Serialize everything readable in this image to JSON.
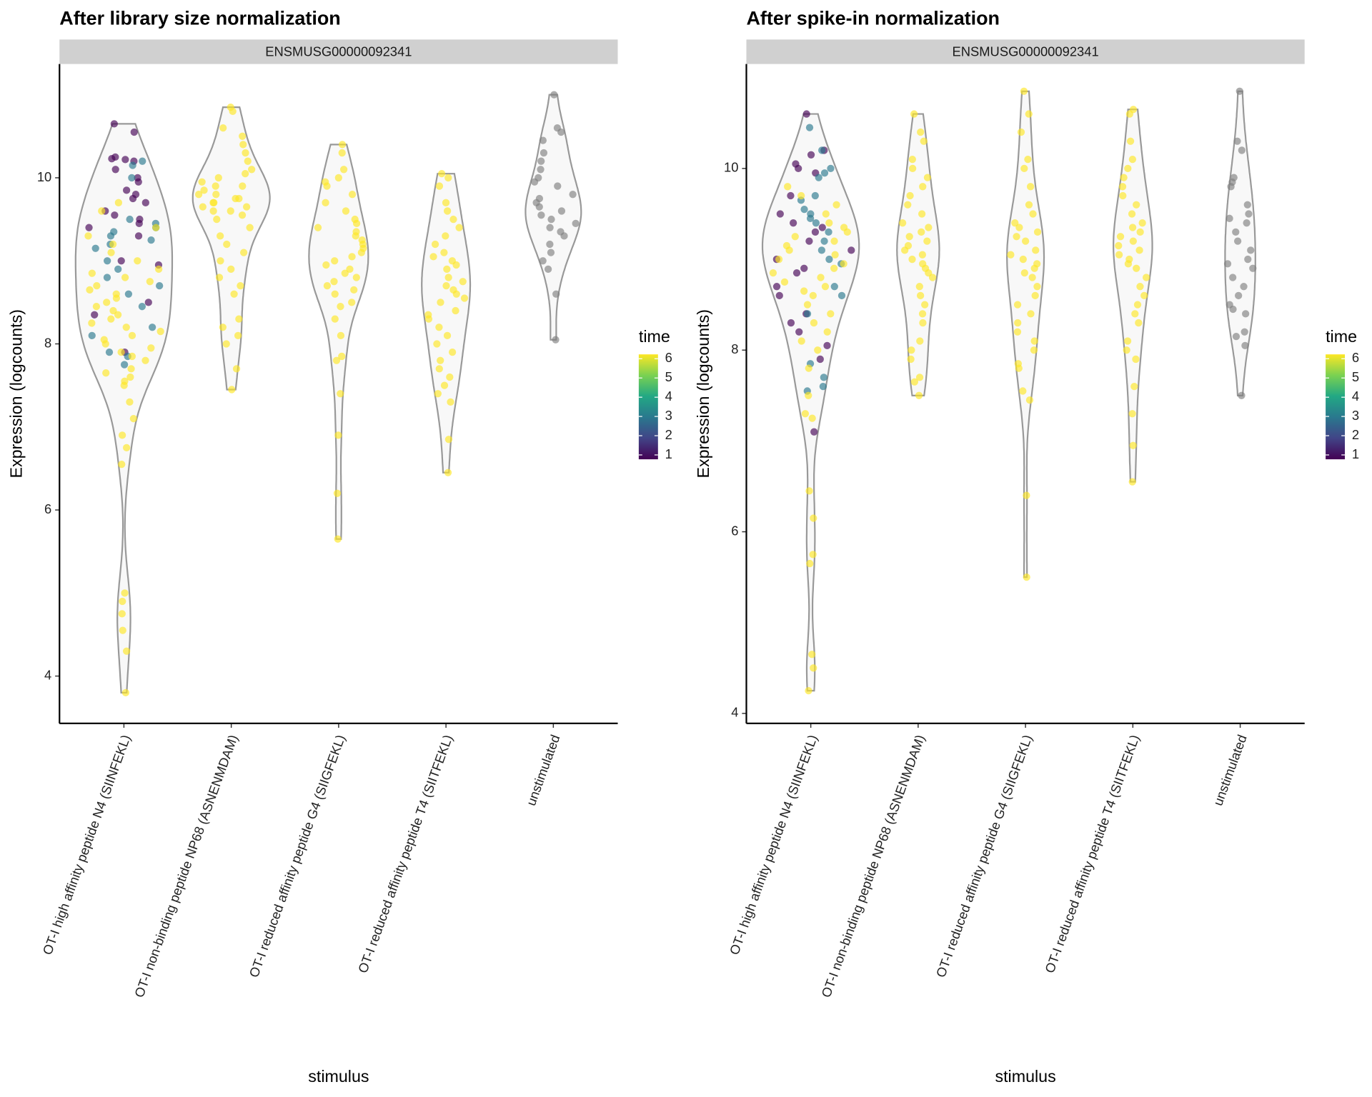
{
  "chart_data": [
    {
      "type": "violin",
      "title": "After library size normalization",
      "strip": "ENSMUSG00000092341",
      "ylabel": "Expression (logcounts)",
      "xlabel": "stimulus",
      "ylim": [
        3.43,
        11.37
      ],
      "yticks": [
        4,
        6,
        8,
        10
      ],
      "color_scale": {
        "title": "time",
        "lim": [
          1,
          6
        ],
        "ticks": [
          1,
          2,
          3,
          4,
          5,
          6
        ],
        "colors": [
          "#440154",
          "#414487",
          "#2a788e",
          "#22a884",
          "#7ad151",
          "#fde725"
        ],
        "na_color": "#7f7f7f"
      },
      "categories": [
        {
          "name": "OT-I high affinity peptide N4 (SIINFEKL)",
          "points": [
            {
              "time": 1,
              "values": [
                10.65,
                10.55,
                10.25,
                10.23,
                10.2,
                10.22,
                10.1,
                10.0,
                9.95,
                9.85,
                9.8,
                9.75,
                9.7,
                9.6,
                9.55,
                9.5,
                9.45,
                9.4,
                9.3,
                9.0,
                8.95,
                8.5,
                8.35,
                7.9
              ]
            },
            {
              "time": 3,
              "values": [
                10.2,
                10.15,
                10.0,
                9.5,
                9.45,
                9.4,
                9.35,
                9.3,
                9.25,
                9.2,
                9.15,
                9.0,
                8.9,
                8.8,
                8.7,
                8.6,
                8.45,
                8.2,
                8.1,
                7.9,
                7.85,
                7.75
              ]
            },
            {
              "time": 6,
              "values": [
                9.7,
                9.6,
                9.4,
                9.3,
                9.2,
                9.1,
                9.0,
                8.9,
                8.8,
                8.7,
                8.6,
                8.5,
                8.4,
                8.35,
                8.3,
                8.2,
                8.1,
                8.0,
                7.95,
                7.9,
                7.8,
                7.7,
                7.6,
                7.55,
                7.5,
                7.3,
                7.1,
                6.9,
                6.75,
                6.55,
                5.0,
                4.9,
                4.75,
                4.55,
                4.3,
                3.8,
                8.85,
                8.75,
                8.65,
                8.55,
                8.45,
                8.25,
                8.15,
                8.05,
                7.85,
                7.65
              ]
            }
          ]
        },
        {
          "name": "OT-I non-binding peptide NP68 (ASNENMDAM)",
          "points": [
            {
              "time": 6,
              "values": [
                10.85,
                10.8,
                10.6,
                10.5,
                10.4,
                10.3,
                10.2,
                10.1,
                10.05,
                10.0,
                9.95,
                9.9,
                9.85,
                9.8,
                9.75,
                9.7,
                9.65,
                9.6,
                9.55,
                9.5,
                9.4,
                9.3,
                9.2,
                9.1,
                9.0,
                8.9,
                8.8,
                8.7,
                8.6,
                8.3,
                8.2,
                8.1,
                8.0,
                7.7,
                7.45,
                9.9,
                9.8,
                9.7,
                9.6,
                9.75,
                9.65
              ]
            }
          ]
        },
        {
          "name": "OT-I reduced affinity peptide G4 (SIIGFEKL)",
          "points": [
            {
              "time": 6,
              "values": [
                10.4,
                10.3,
                10.1,
                10.0,
                9.95,
                9.9,
                9.8,
                9.7,
                9.6,
                9.5,
                9.4,
                9.35,
                9.3,
                9.2,
                9.1,
                9.05,
                9.0,
                8.95,
                8.9,
                8.8,
                8.75,
                8.7,
                8.6,
                8.5,
                8.45,
                8.3,
                8.1,
                7.85,
                7.8,
                7.4,
                6.9,
                6.2,
                5.65,
                9.25,
                9.15,
                8.85,
                8.65,
                9.45
              ]
            }
          ]
        },
        {
          "name": "OT-I reduced affinity peptide T4 (SIITFEKL)",
          "points": [
            {
              "time": 6,
              "values": [
                10.05,
                10.0,
                9.9,
                9.7,
                9.6,
                9.5,
                9.4,
                9.3,
                9.2,
                9.1,
                9.05,
                9.0,
                8.9,
                8.8,
                8.7,
                8.6,
                8.5,
                8.4,
                8.3,
                8.2,
                8.1,
                8.0,
                7.9,
                7.8,
                7.7,
                7.6,
                7.5,
                7.4,
                7.3,
                6.85,
                6.45,
                8.75,
                8.65,
                8.55,
                8.35,
                8.95
              ]
            }
          ]
        },
        {
          "name": "unstimulated",
          "points": [
            {
              "time": null,
              "values": [
                11.0,
                10.6,
                10.55,
                10.45,
                10.3,
                10.2,
                10.1,
                10.0,
                9.95,
                9.9,
                9.8,
                9.75,
                9.7,
                9.65,
                9.6,
                9.55,
                9.5,
                9.45,
                9.4,
                9.35,
                9.3,
                9.2,
                9.1,
                9.0,
                8.9,
                8.6,
                8.05
              ]
            }
          ]
        }
      ]
    },
    {
      "type": "violin",
      "title": "After spike-in normalization",
      "strip": "ENSMUSG00000092341",
      "ylabel": "Expression (logcounts)",
      "xlabel": "stimulus",
      "ylim": [
        3.89,
        11.15
      ],
      "yticks": [
        4,
        6,
        8,
        10
      ],
      "color_scale": {
        "title": "time",
        "lim": [
          1,
          6
        ],
        "ticks": [
          1,
          2,
          3,
          4,
          5,
          6
        ],
        "colors": [
          "#440154",
          "#414487",
          "#2a788e",
          "#22a884",
          "#7ad151",
          "#fde725"
        ],
        "na_color": "#7f7f7f"
      },
      "categories": [
        {
          "name": "OT-I high affinity peptide N4 (SIINFEKL)",
          "points": [
            {
              "time": 1,
              "values": [
                10.6,
                10.2,
                10.15,
                10.05,
                10.0,
                9.95,
                9.7,
                9.5,
                9.4,
                9.35,
                9.3,
                9.2,
                9.1,
                9.0,
                8.9,
                8.85,
                8.7,
                8.6,
                8.4,
                8.3,
                8.2,
                8.05,
                7.9,
                7.1
              ]
            },
            {
              "time": 3,
              "values": [
                10.45,
                10.2,
                10.0,
                9.95,
                9.9,
                9.7,
                9.65,
                9.55,
                9.5,
                9.45,
                9.4,
                9.3,
                9.2,
                9.1,
                9.0,
                8.95,
                8.7,
                8.6,
                8.4,
                7.85,
                7.7,
                7.6,
                7.55
              ]
            },
            {
              "time": 6,
              "values": [
                9.8,
                9.7,
                9.6,
                9.5,
                9.4,
                9.3,
                9.2,
                9.15,
                9.1,
                9.05,
                9.0,
                8.95,
                8.9,
                8.8,
                8.7,
                8.6,
                8.5,
                8.4,
                8.3,
                8.2,
                8.1,
                8.0,
                7.8,
                7.5,
                7.3,
                7.25,
                6.45,
                6.15,
                5.75,
                5.65,
                4.65,
                4.5,
                4.25,
                9.25,
                9.35,
                8.85,
                8.75,
                8.65
              ]
            }
          ]
        },
        {
          "name": "OT-I non-binding peptide NP68 (ASNENMDAM)",
          "points": [
            {
              "time": 6,
              "values": [
                10.6,
                10.4,
                10.3,
                10.1,
                10.0,
                9.9,
                9.8,
                9.7,
                9.6,
                9.5,
                9.4,
                9.35,
                9.3,
                9.2,
                9.1,
                9.0,
                8.9,
                8.8,
                8.7,
                8.6,
                8.5,
                8.4,
                8.3,
                8.1,
                8.0,
                7.9,
                7.7,
                7.65,
                7.5,
                9.25,
                9.15,
                9.05,
                8.95,
                8.85
              ]
            }
          ]
        },
        {
          "name": "OT-I reduced affinity peptide G4 (SIIGFEKL)",
          "points": [
            {
              "time": 6,
              "values": [
                10.85,
                10.6,
                10.4,
                10.1,
                10.0,
                9.8,
                9.6,
                9.5,
                9.4,
                9.3,
                9.2,
                9.1,
                9.0,
                8.95,
                8.9,
                8.8,
                8.7,
                8.6,
                8.5,
                8.4,
                8.3,
                8.2,
                8.1,
                8.0,
                7.85,
                7.8,
                7.55,
                7.45,
                6.4,
                5.5,
                9.35,
                9.25,
                9.05,
                8.85
              ]
            }
          ]
        },
        {
          "name": "OT-I reduced affinity peptide T4 (SIITFEKL)",
          "points": [
            {
              "time": 6,
              "values": [
                10.65,
                10.6,
                10.3,
                10.1,
                10.0,
                9.9,
                9.8,
                9.7,
                9.6,
                9.5,
                9.4,
                9.3,
                9.2,
                9.1,
                9.0,
                8.9,
                8.8,
                8.7,
                8.6,
                8.5,
                8.4,
                8.3,
                8.1,
                8.0,
                7.9,
                7.6,
                7.3,
                6.95,
                6.55,
                9.35,
                9.25,
                9.15,
                9.05,
                8.95
              ]
            }
          ]
        },
        {
          "name": "unstimulated",
          "points": [
            {
              "time": null,
              "values": [
                10.85,
                10.3,
                10.2,
                9.9,
                9.85,
                9.8,
                9.6,
                9.5,
                9.45,
                9.4,
                9.3,
                9.2,
                9.1,
                9.0,
                8.95,
                8.9,
                8.8,
                8.7,
                8.6,
                8.5,
                8.45,
                8.4,
                8.2,
                8.15,
                8.05,
                7.5
              ]
            }
          ]
        }
      ]
    }
  ]
}
